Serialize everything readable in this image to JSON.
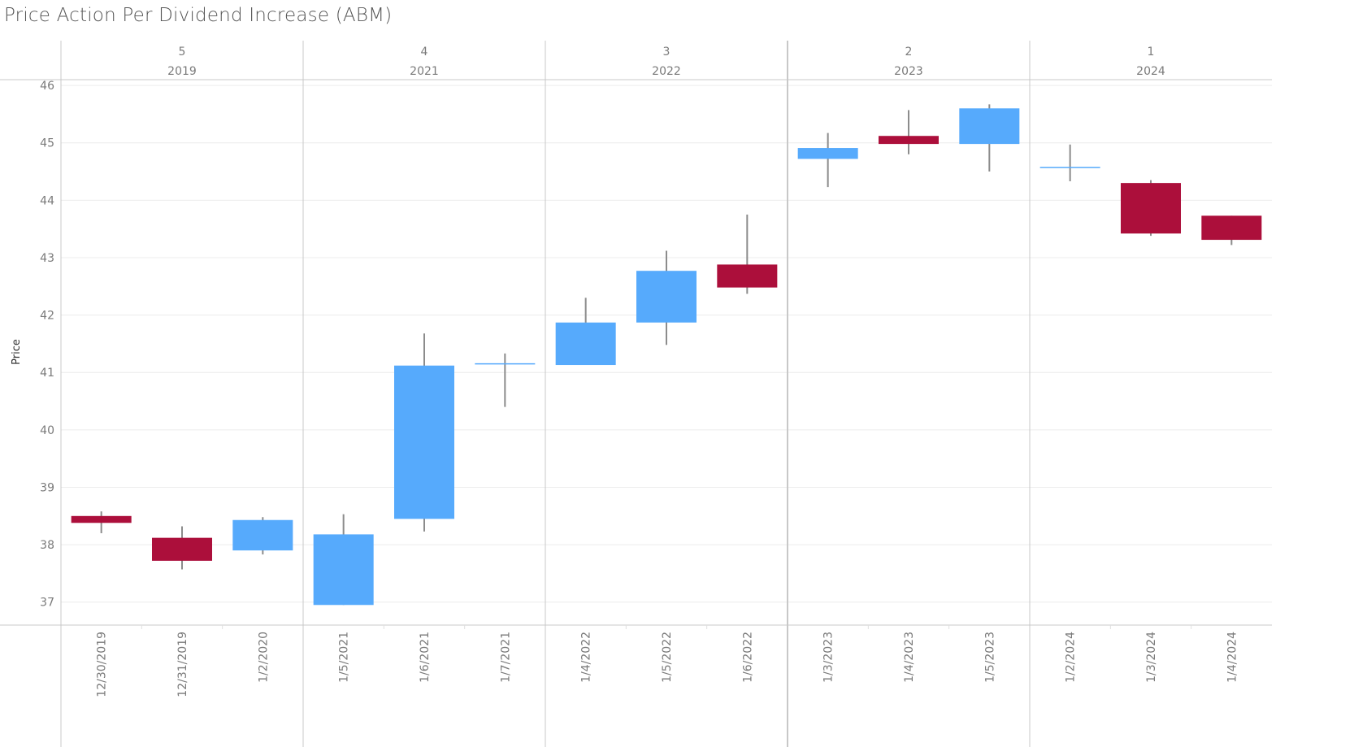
{
  "title": "Price Action Per Dividend Increase (ABM)",
  "colors": {
    "up": "#56aafc",
    "down": "#ac0f3b",
    "wick": "#8c8c8c",
    "grid": "#ececec",
    "divider": "#c8c8c8",
    "axis_text": "#7a7a7a"
  },
  "chart_data": {
    "type": "candlestick",
    "title": "Price Action Per Dividend Increase (ABM)",
    "ylabel": "Price",
    "ylim": [
      36.6,
      46.1
    ],
    "yticks": [
      37,
      38,
      39,
      40,
      41,
      42,
      43,
      44,
      45,
      46
    ],
    "groups": [
      {
        "rank": "5",
        "year": "2019",
        "candles": [
          {
            "date": "12/30/2019",
            "open": 38.5,
            "close": 38.38,
            "high": 38.58,
            "low": 38.2
          },
          {
            "date": "12/31/2019",
            "open": 38.12,
            "close": 37.72,
            "high": 38.32,
            "low": 37.57
          },
          {
            "date": "1/2/2020",
            "open": 37.9,
            "close": 38.43,
            "high": 38.48,
            "low": 37.83
          }
        ]
      },
      {
        "rank": "4",
        "year": "2021",
        "candles": [
          {
            "date": "1/5/2021",
            "open": 36.95,
            "close": 38.18,
            "high": 38.53,
            "low": 36.95
          },
          {
            "date": "1/6/2021",
            "open": 38.45,
            "close": 41.12,
            "high": 41.68,
            "low": 38.23
          },
          {
            "date": "1/7/2021",
            "open": 41.15,
            "close": 41.15,
            "high": 41.33,
            "low": 40.4
          }
        ]
      },
      {
        "rank": "3",
        "year": "2022",
        "candles": [
          {
            "date": "1/4/2022",
            "open": 41.13,
            "close": 41.87,
            "high": 42.3,
            "low": 41.13
          },
          {
            "date": "1/5/2022",
            "open": 41.87,
            "close": 42.77,
            "high": 43.12,
            "low": 41.48
          },
          {
            "date": "1/6/2022",
            "open": 42.88,
            "close": 42.48,
            "high": 43.75,
            "low": 42.37
          }
        ]
      },
      {
        "rank": "2",
        "year": "2023",
        "candles": [
          {
            "date": "1/3/2023",
            "open": 44.72,
            "close": 44.91,
            "high": 45.17,
            "low": 44.23
          },
          {
            "date": "1/4/2023",
            "open": 45.12,
            "close": 44.98,
            "high": 45.57,
            "low": 44.8
          },
          {
            "date": "1/5/2023",
            "open": 44.98,
            "close": 45.6,
            "high": 45.67,
            "low": 44.5
          }
        ]
      },
      {
        "rank": "1",
        "year": "2024",
        "candles": [
          {
            "date": "1/2/2024",
            "open": 44.57,
            "close": 44.57,
            "high": 44.97,
            "low": 44.33
          },
          {
            "date": "1/3/2024",
            "open": 44.3,
            "close": 43.42,
            "high": 44.35,
            "low": 43.38
          },
          {
            "date": "1/4/2024",
            "open": 43.73,
            "close": 43.31,
            "high": 43.73,
            "low": 43.22
          }
        ]
      }
    ]
  }
}
